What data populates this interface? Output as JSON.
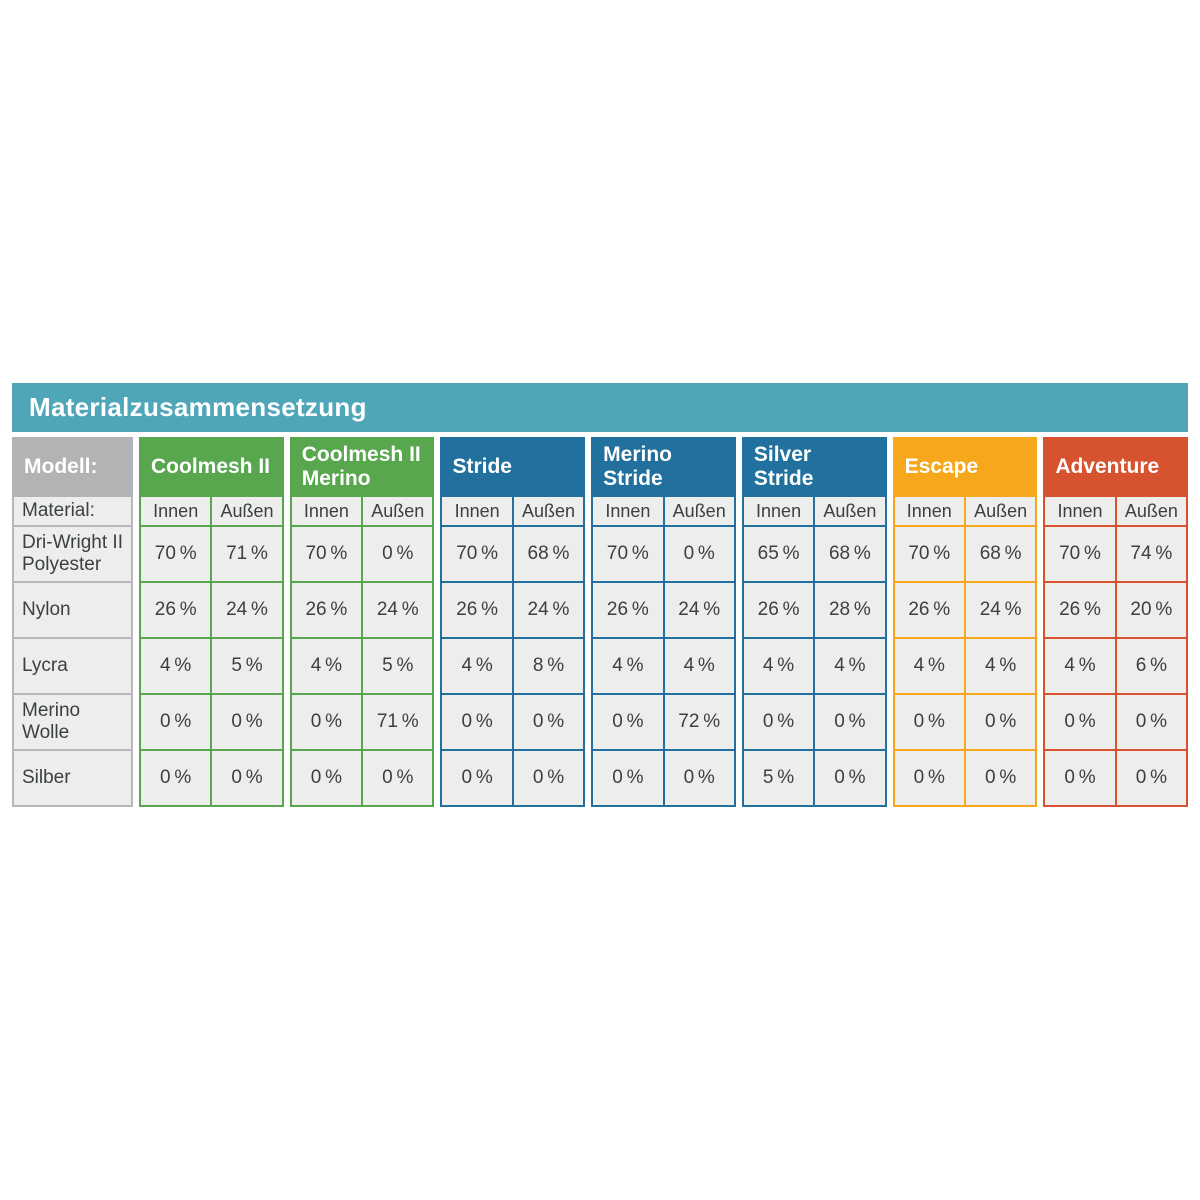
{
  "title": "Materialzusammensetzung",
  "corner": {
    "model_label": "Modell:",
    "material_label": "Material:"
  },
  "sub_headers": [
    "Innen",
    "Außen"
  ],
  "materials": [
    "Dri-Wright II Polyester",
    "Nylon",
    "Lycra",
    "Merino Wolle",
    "Silber"
  ],
  "colors": {
    "title_bar": "#4fa6b9",
    "corner_header": "#b1b3b5",
    "label_border": "#b6b8ba",
    "cell_background": "#ededeb",
    "text_dark": "#3b4045",
    "green": "#58a74e",
    "blue": "#21709e",
    "orange": "#f6a71b",
    "red": "#d75330"
  },
  "models": [
    {
      "name": "Coolmesh II",
      "color": "#58a74e",
      "values": [
        [
          "70 %",
          "71 %"
        ],
        [
          "26 %",
          "24 %"
        ],
        [
          "4 %",
          "5 %"
        ],
        [
          "0 %",
          "0 %"
        ],
        [
          "0 %",
          "0 %"
        ]
      ]
    },
    {
      "name": "Coolmesh II Merino",
      "color": "#58a74e",
      "values": [
        [
          "70 %",
          "0 %"
        ],
        [
          "26 %",
          "24 %"
        ],
        [
          "4 %",
          "5 %"
        ],
        [
          "0 %",
          "71 %"
        ],
        [
          "0 %",
          "0 %"
        ]
      ]
    },
    {
      "name": "Stride",
      "color": "#21709e",
      "values": [
        [
          "70 %",
          "68 %"
        ],
        [
          "26 %",
          "24 %"
        ],
        [
          "4 %",
          "8 %"
        ],
        [
          "0 %",
          "0 %"
        ],
        [
          "0 %",
          "0 %"
        ]
      ]
    },
    {
      "name": "Merino Stride",
      "color": "#21709e",
      "values": [
        [
          "70 %",
          "0 %"
        ],
        [
          "26 %",
          "24 %"
        ],
        [
          "4 %",
          "4 %"
        ],
        [
          "0 %",
          "72 %"
        ],
        [
          "0 %",
          "0 %"
        ]
      ]
    },
    {
      "name": "Silver Stride",
      "color": "#21709e",
      "values": [
        [
          "65 %",
          "68 %"
        ],
        [
          "26 %",
          "28 %"
        ],
        [
          "4 %",
          "4 %"
        ],
        [
          "0 %",
          "0 %"
        ],
        [
          "5 %",
          "0 %"
        ]
      ]
    },
    {
      "name": "Escape",
      "color": "#f6a71b",
      "values": [
        [
          "70 %",
          "68 %"
        ],
        [
          "26 %",
          "24 %"
        ],
        [
          "4 %",
          "4 %"
        ],
        [
          "0 %",
          "0 %"
        ],
        [
          "0 %",
          "0 %"
        ]
      ]
    },
    {
      "name": "Adventure",
      "color": "#d75330",
      "values": [
        [
          "70 %",
          "74 %"
        ],
        [
          "26 %",
          "20 %"
        ],
        [
          "4 %",
          "6 %"
        ],
        [
          "0 %",
          "0 %"
        ],
        [
          "0 %",
          "0 %"
        ]
      ]
    }
  ],
  "chart_data": {
    "type": "table",
    "title": "Materialzusammensetzung",
    "corner_header": "Modell:",
    "row_axis_label": "Material:",
    "columns": [
      "Coolmesh II",
      "Coolmesh II Merino",
      "Stride",
      "Merino Stride",
      "Silver Stride",
      "Escape",
      "Adventure"
    ],
    "sub_columns": [
      "Innen",
      "Außen"
    ],
    "rows": [
      "Dri-Wright II Polyester",
      "Nylon",
      "Lycra",
      "Merino Wolle",
      "Silber"
    ],
    "values_percent": {
      "Coolmesh II": {
        "Innen": [
          70,
          26,
          4,
          0,
          0
        ],
        "Außen": [
          71,
          24,
          5,
          0,
          0
        ]
      },
      "Coolmesh II Merino": {
        "Innen": [
          70,
          26,
          4,
          0,
          0
        ],
        "Außen": [
          0,
          24,
          5,
          71,
          0
        ]
      },
      "Stride": {
        "Innen": [
          70,
          26,
          4,
          0,
          0
        ],
        "Außen": [
          68,
          24,
          8,
          0,
          0
        ]
      },
      "Merino Stride": {
        "Innen": [
          70,
          26,
          4,
          0,
          0
        ],
        "Außen": [
          0,
          24,
          4,
          72,
          0
        ]
      },
      "Silver Stride": {
        "Innen": [
          65,
          26,
          4,
          0,
          5
        ],
        "Außen": [
          68,
          28,
          4,
          0,
          0
        ]
      },
      "Escape": {
        "Innen": [
          70,
          26,
          4,
          0,
          0
        ],
        "Außen": [
          68,
          24,
          4,
          0,
          0
        ]
      },
      "Adventure": {
        "Innen": [
          70,
          26,
          4,
          0,
          0
        ],
        "Außen": [
          74,
          20,
          6,
          0,
          0
        ]
      }
    }
  }
}
